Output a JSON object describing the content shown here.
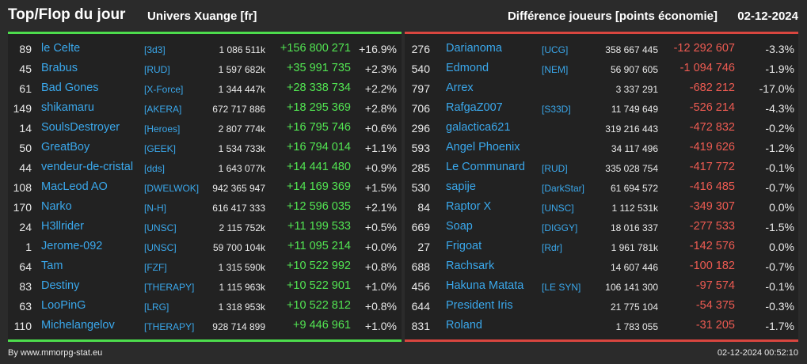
{
  "header": {
    "title": "Top/Flop du jour",
    "universe": "Univers Xuange [fr]",
    "metric": "Différence joueurs [points économie]",
    "date": "02-12-2024"
  },
  "colors": {
    "top_accent": "#4ddd4d",
    "flop_accent": "#d9463f",
    "link": "#3aa8ec",
    "positive": "#52e552",
    "negative": "#ee5b52"
  },
  "top": [
    {
      "rank": "89",
      "name": "le Celte",
      "alliance": "[3d3]",
      "points": "1 086 511k",
      "diff": "+156 800 271",
      "pct": "+16.9%"
    },
    {
      "rank": "45",
      "name": "Brabus",
      "alliance": "[RUD]",
      "points": "1 597 682k",
      "diff": "+35 991 735",
      "pct": "+2.3%"
    },
    {
      "rank": "61",
      "name": "Bad Gones",
      "alliance": "[X-Force]",
      "points": "1 344 447k",
      "diff": "+28 338 734",
      "pct": "+2.2%"
    },
    {
      "rank": "149",
      "name": "shikamaru",
      "alliance": "[AKERA]",
      "points": "672 717 886",
      "diff": "+18 295 369",
      "pct": "+2.8%"
    },
    {
      "rank": "14",
      "name": "SoulsDestroyer",
      "alliance": "[Heroes]",
      "points": "2 807 774k",
      "diff": "+16 795 746",
      "pct": "+0.6%"
    },
    {
      "rank": "50",
      "name": "GreatBoy",
      "alliance": "[GEEK]",
      "points": "1 534 733k",
      "diff": "+16 794 014",
      "pct": "+1.1%"
    },
    {
      "rank": "44",
      "name": "vendeur-de-cristal",
      "alliance": "[dds]",
      "points": "1 643 077k",
      "diff": "+14 441 480",
      "pct": "+0.9%"
    },
    {
      "rank": "108",
      "name": "MacLeod AO",
      "alliance": "[DWELWOK]",
      "points": "942 365 947",
      "diff": "+14 169 369",
      "pct": "+1.5%"
    },
    {
      "rank": "170",
      "name": "Narko",
      "alliance": "[N-H]",
      "points": "616 417 333",
      "diff": "+12 596 035",
      "pct": "+2.1%"
    },
    {
      "rank": "24",
      "name": "H3llrider",
      "alliance": "[UNSC]",
      "points": "2 115 752k",
      "diff": "+11 199 533",
      "pct": "+0.5%"
    },
    {
      "rank": "1",
      "name": "Jerome-092",
      "alliance": "[UNSC]",
      "points": "59 700 104k",
      "diff": "+11 095 214",
      "pct": "+0.0%"
    },
    {
      "rank": "64",
      "name": "Tam",
      "alliance": "[FZF]",
      "points": "1 315 590k",
      "diff": "+10 522 992",
      "pct": "+0.8%"
    },
    {
      "rank": "83",
      "name": "Destiny",
      "alliance": "[THERAPY]",
      "points": "1 115 963k",
      "diff": "+10 522 901",
      "pct": "+1.0%"
    },
    {
      "rank": "63",
      "name": "LooPinG",
      "alliance": "[LRG]",
      "points": "1 318 953k",
      "diff": "+10 522 812",
      "pct": "+0.8%"
    },
    {
      "rank": "110",
      "name": "Michelangelov",
      "alliance": "[THERAPY]",
      "points": "928 714 899",
      "diff": "+9 446 961",
      "pct": "+1.0%"
    }
  ],
  "flop": [
    {
      "rank": "276",
      "name": "Darianoma",
      "alliance": "[UCG]",
      "points": "358 667 445",
      "diff": "-12 292 607",
      "pct": "-3.3%"
    },
    {
      "rank": "540",
      "name": "Edmond",
      "alliance": "[NEM]",
      "points": "56 907 605",
      "diff": "-1 094 746",
      "pct": "-1.9%"
    },
    {
      "rank": "797",
      "name": "Arrex",
      "alliance": "",
      "points": "3 337 291",
      "diff": "-682 212",
      "pct": "-17.0%"
    },
    {
      "rank": "706",
      "name": "RafgaZ007",
      "alliance": "[S33D]",
      "points": "11 749 649",
      "diff": "-526 214",
      "pct": "-4.3%"
    },
    {
      "rank": "296",
      "name": "galactica621",
      "alliance": "",
      "points": "319 216 443",
      "diff": "-472 832",
      "pct": "-0.2%"
    },
    {
      "rank": "593",
      "name": "Angel Phoenix",
      "alliance": "",
      "points": "34 117 496",
      "diff": "-419 626",
      "pct": "-1.2%"
    },
    {
      "rank": "285",
      "name": "Le Communard",
      "alliance": "[RUD]",
      "points": "335 028 754",
      "diff": "-417 772",
      "pct": "-0.1%"
    },
    {
      "rank": "530",
      "name": "sapije",
      "alliance": "[DarkStar]",
      "points": "61 694 572",
      "diff": "-416 485",
      "pct": "-0.7%"
    },
    {
      "rank": "84",
      "name": "Raptor X",
      "alliance": "[UNSC]",
      "points": "1 112 531k",
      "diff": "-349 307",
      "pct": "0.0%"
    },
    {
      "rank": "669",
      "name": "Soap",
      "alliance": "[DIGGY]",
      "points": "18 016 337",
      "diff": "-277 533",
      "pct": "-1.5%"
    },
    {
      "rank": "27",
      "name": "Frigoat",
      "alliance": "[Rdr]",
      "points": "1 961 781k",
      "diff": "-142 576",
      "pct": "0.0%"
    },
    {
      "rank": "688",
      "name": "Rachsark",
      "alliance": "",
      "points": "14 607 446",
      "diff": "-100 182",
      "pct": "-0.7%"
    },
    {
      "rank": "456",
      "name": "Hakuna Matata",
      "alliance": "[LE SYN]",
      "points": "106 141 300",
      "diff": "-97 574",
      "pct": "-0.1%"
    },
    {
      "rank": "644",
      "name": "President Iris",
      "alliance": "",
      "points": "21 775 104",
      "diff": "-54 375",
      "pct": "-0.3%"
    },
    {
      "rank": "831",
      "name": "Roland",
      "alliance": "",
      "points": "1 783 055",
      "diff": "-31 205",
      "pct": "-1.7%"
    }
  ],
  "footer": {
    "source": "By www.mmorpg-stat.eu",
    "timestamp": "02-12-2024 00:52:10"
  }
}
